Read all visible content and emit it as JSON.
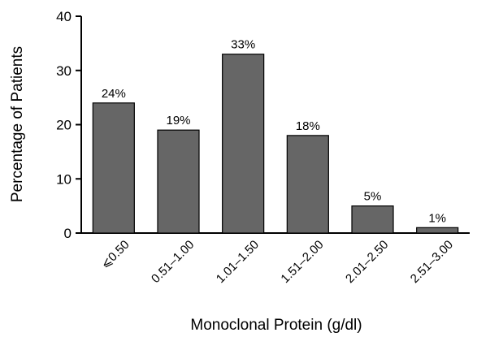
{
  "chart_data": {
    "type": "bar",
    "categories": [
      "⩽0.50",
      "0.51–1.00",
      "1.01–1.50",
      "1.51–2.00",
      "2.01–2.50",
      "2.51–3.00"
    ],
    "values": [
      24,
      19,
      33,
      18,
      5,
      1
    ],
    "data_labels": [
      "24%",
      "19%",
      "33%",
      "18%",
      "5%",
      "1%"
    ],
    "xlabel": "Monoclonal Protein (g/dl)",
    "ylabel": "Percentage of Patients",
    "ylim": [
      0,
      40
    ],
    "yticks": [
      0,
      10,
      20,
      30,
      40
    ],
    "grid": false,
    "bar_color": "#666666"
  }
}
